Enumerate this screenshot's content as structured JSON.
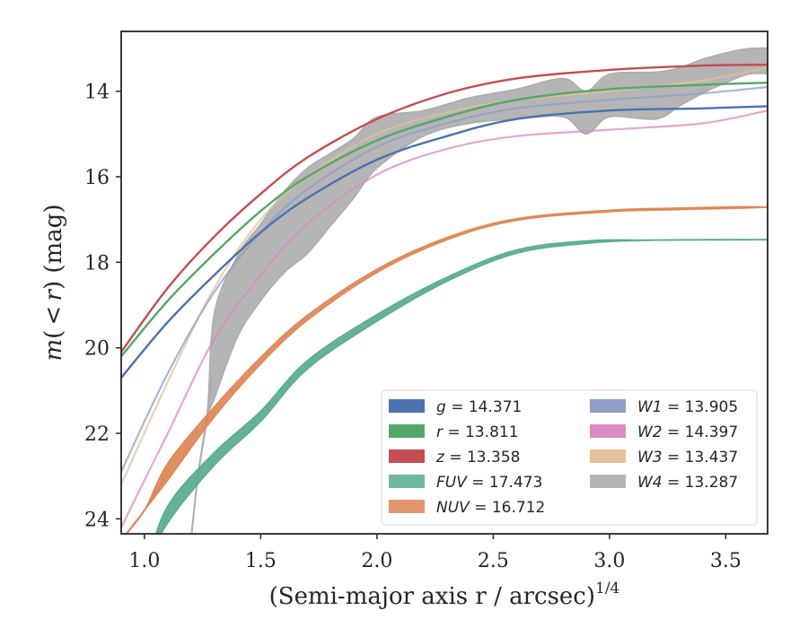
{
  "chart_data": {
    "type": "line",
    "xlabel": "(Semi-major axis r / arcsec)^{1/4}",
    "ylabel": "m(<r) (mag)",
    "xlim": [
      0.9,
      3.68
    ],
    "ylim": [
      24.35,
      12.6
    ],
    "y_inverted": true,
    "grid": false,
    "legend_position": "lower-right",
    "xticks": [
      1.0,
      1.5,
      2.0,
      2.5,
      3.0,
      3.5
    ],
    "xtick_labels": [
      "1.0",
      "1.5",
      "2.0",
      "2.5",
      "3.0",
      "3.5"
    ],
    "yticks": [
      14,
      16,
      18,
      20,
      22,
      24
    ],
    "ytick_labels": [
      "14",
      "16",
      "18",
      "20",
      "22",
      "24"
    ],
    "series": [
      {
        "name": "g",
        "value": "14.371",
        "color": "#4c72b0",
        "style": "line",
        "x": [
          0.9,
          1.1,
          1.3,
          1.5,
          1.7,
          2.0,
          2.3,
          2.6,
          3.0,
          3.4,
          3.68
        ],
        "y": [
          20.7,
          19.4,
          18.3,
          17.3,
          16.5,
          15.6,
          15.05,
          14.65,
          14.45,
          14.4,
          14.35
        ]
      },
      {
        "name": "r",
        "value": "13.811",
        "color": "#55a868",
        "style": "line",
        "x": [
          0.9,
          1.1,
          1.3,
          1.5,
          1.7,
          2.0,
          2.3,
          2.6,
          3.0,
          3.4,
          3.68
        ],
        "y": [
          20.2,
          18.9,
          17.8,
          16.8,
          16.0,
          15.15,
          14.6,
          14.2,
          13.95,
          13.85,
          13.8
        ]
      },
      {
        "name": "z",
        "value": "13.358",
        "color": "#c44e52",
        "style": "line",
        "x": [
          0.9,
          1.1,
          1.3,
          1.5,
          1.7,
          2.0,
          2.3,
          2.6,
          3.0,
          3.4,
          3.68
        ],
        "y": [
          20.1,
          18.6,
          17.4,
          16.4,
          15.55,
          14.65,
          14.05,
          13.7,
          13.5,
          13.4,
          13.38
        ]
      },
      {
        "name": "FUV",
        "value": "17.473",
        "color": "#55aa8e",
        "style": "band",
        "x": [
          0.9,
          1.0,
          1.1,
          1.3,
          1.5,
          1.7,
          2.0,
          2.3,
          2.6,
          2.92,
          3.2,
          3.68
        ],
        "y": [
          26.5,
          25.2,
          23.9,
          22.6,
          21.6,
          20.4,
          19.3,
          18.4,
          17.75,
          17.52,
          17.48,
          17.47
        ],
        "band_halfwidth": [
          0,
          0,
          0.2,
          0.15,
          0.12,
          0.1,
          0.08,
          0.05,
          0.04,
          0.03,
          0,
          0
        ],
        "faded_before": 1.1,
        "faded_after": 2.92
      },
      {
        "name": "NUV",
        "value": "16.712",
        "color": "#dd8452",
        "style": "band",
        "x": [
          0.9,
          1.0,
          1.1,
          1.3,
          1.5,
          1.7,
          2.0,
          2.3,
          2.6,
          3.0,
          3.3,
          3.55,
          3.68
        ],
        "y": [
          24.5,
          23.8,
          22.9,
          21.5,
          20.3,
          19.3,
          18.2,
          17.45,
          17.0,
          16.8,
          16.75,
          16.72,
          16.71
        ],
        "band_halfwidth": [
          0,
          0,
          0.2,
          0.12,
          0.08,
          0.06,
          0.04,
          0.03,
          0.02,
          0.02,
          0.02,
          0.02,
          0
        ],
        "faded_before": 1.1,
        "faded_after": 3.55
      },
      {
        "name": "W1",
        "value": "13.905",
        "color": "#8c9dc6",
        "style": "line",
        "x": [
          0.9,
          1.1,
          1.3,
          1.5,
          1.7,
          2.0,
          2.3,
          2.6,
          3.0,
          3.4,
          3.68
        ],
        "y": [
          22.9,
          20.6,
          18.7,
          17.3,
          16.3,
          15.3,
          14.75,
          14.4,
          14.2,
          14.05,
          13.9
        ]
      },
      {
        "name": "W2",
        "value": "14.397",
        "color": "#da8bc3",
        "style": "line",
        "x": [
          0.9,
          1.1,
          1.3,
          1.5,
          1.7,
          2.0,
          2.3,
          2.6,
          3.0,
          3.4,
          3.68
        ],
        "y": [
          24.2,
          22.0,
          19.8,
          18.3,
          17.1,
          15.95,
          15.35,
          15.05,
          14.9,
          14.75,
          14.45
        ]
      },
      {
        "name": "W3",
        "value": "13.437",
        "color": "#e3c298",
        "style": "line",
        "x": [
          0.9,
          1.1,
          1.3,
          1.5,
          1.7,
          2.0,
          2.3,
          2.6,
          3.0,
          3.4,
          3.68
        ],
        "y": [
          23.2,
          20.8,
          18.6,
          17.0,
          16.0,
          15.0,
          14.5,
          14.2,
          14.0,
          13.75,
          13.44
        ]
      },
      {
        "name": "W4",
        "value": "13.287",
        "color": "#a8a8a8",
        "style": "band",
        "x": [
          1.2,
          1.23,
          1.27,
          1.3,
          1.4,
          1.5,
          1.6,
          1.7,
          1.8,
          1.9,
          2.0,
          2.2,
          2.4,
          2.6,
          2.8,
          2.9,
          3.0,
          3.2,
          3.3,
          3.4,
          3.5,
          3.6,
          3.68
        ],
        "y": [
          24.5,
          23.0,
          21.6,
          20.2,
          18.8,
          18.0,
          17.3,
          16.8,
          16.3,
          15.8,
          15.2,
          14.75,
          14.45,
          14.3,
          14.15,
          14.5,
          14.1,
          14.1,
          13.9,
          13.65,
          13.45,
          13.3,
          13.29
        ],
        "band_halfwidth": [
          0,
          0,
          0.05,
          1.0,
          0.95,
          0.9,
          0.95,
          1.0,
          0.85,
          0.7,
          0.6,
          0.3,
          0.3,
          0.35,
          0.45,
          0.5,
          0.5,
          0.55,
          0.45,
          0.4,
          0.35,
          0.3,
          0.3
        ],
        "faded_before": 1.29
      }
    ],
    "legend_columns": [
      [
        "g",
        "r",
        "z",
        "FUV",
        "NUV"
      ],
      [
        "W1",
        "W2",
        "W3",
        "W4"
      ]
    ]
  }
}
